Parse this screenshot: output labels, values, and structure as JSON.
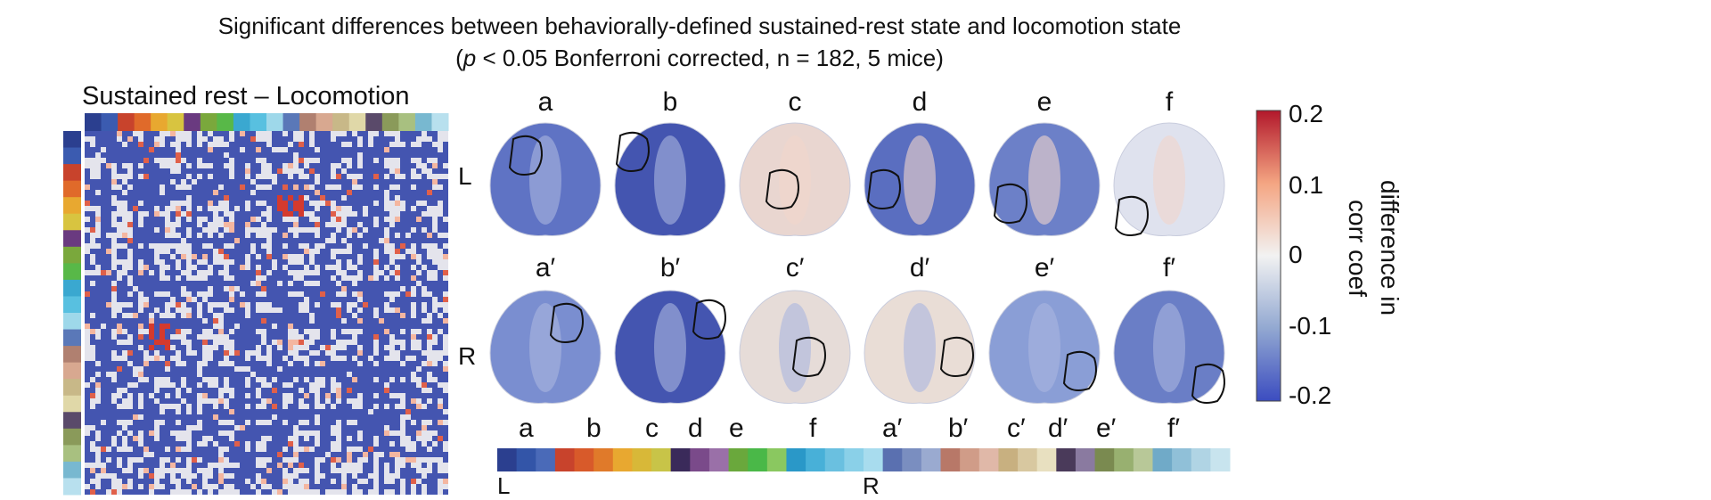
{
  "title_line1": "Significant differences between behaviorally-defined sustained-rest state and locomotion state",
  "title_line2_pre": "(",
  "title_line2_p": "p",
  "title_line2_post": " < 0.05 Bonferroni corrected, n = 182, 5 mice)",
  "matrix_title": "Sustained rest – Locomotion",
  "row_labels": {
    "left": "L",
    "right": "R"
  },
  "brain_labels_top": [
    "a",
    "b",
    "c",
    "d",
    "e",
    "f"
  ],
  "brain_labels_bottom": [
    "a′",
    "b′",
    "c′",
    "d′",
    "e′",
    "f′"
  ],
  "strip_labels": [
    "a",
    "b",
    "c",
    "d",
    "e",
    "f",
    "a′",
    "b′",
    "c′",
    "d′",
    "e′",
    "f′"
  ],
  "strip_ends": {
    "left": "L",
    "right": "R"
  },
  "colorbar": {
    "ticks": [
      "0.2",
      "0.1",
      "0",
      "-0.1",
      "-0.2"
    ],
    "label_line1": "difference in",
    "label_line2": "corr coef",
    "max_color": "#b2182b",
    "mid_color": "#f2f2f2",
    "min_color": "#3b4cc0"
  }
}
